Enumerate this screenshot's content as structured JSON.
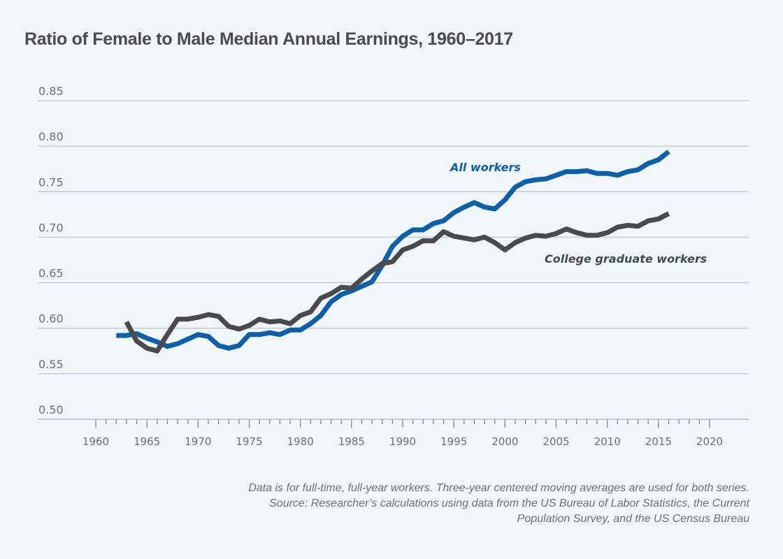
{
  "chart_data": {
    "type": "line",
    "title": "Ratio of Female to Male Median Annual Earnings, 1960–2017",
    "xlabel": "",
    "ylabel": "",
    "xlim": [
      1960,
      2020
    ],
    "ylim": [
      0.5,
      0.85
    ],
    "xticks": [
      1960,
      1965,
      1970,
      1975,
      1980,
      1985,
      1990,
      1995,
      2000,
      2005,
      2010,
      2015,
      2020
    ],
    "yticks": [
      "0.50",
      "0.55",
      "0.60",
      "0.65",
      "0.70",
      "0.75",
      "0.80",
      "0.85"
    ],
    "grid": "horizontal",
    "legend": "inline-labels",
    "series": [
      {
        "name": "All workers",
        "color": "#0f5fa6",
        "x": [
          1962,
          1963,
          1964,
          1965,
          1966,
          1967,
          1968,
          1969,
          1970,
          1971,
          1972,
          1973,
          1974,
          1975,
          1976,
          1977,
          1978,
          1979,
          1980,
          1981,
          1982,
          1983,
          1984,
          1985,
          1986,
          1987,
          1988,
          1989,
          1990,
          1991,
          1992,
          1993,
          1994,
          1995,
          1996,
          1997,
          1998,
          1999,
          2000,
          2001,
          2002,
          2003,
          2004,
          2005,
          2006,
          2007,
          2008,
          2009,
          2010,
          2011,
          2012,
          2013,
          2014,
          2015,
          2016
        ],
        "values": [
          0.592,
          0.592,
          0.594,
          0.589,
          0.585,
          0.58,
          0.583,
          0.588,
          0.593,
          0.591,
          0.581,
          0.578,
          0.581,
          0.593,
          0.593,
          0.595,
          0.593,
          0.598,
          0.598,
          0.605,
          0.614,
          0.629,
          0.637,
          0.641,
          0.646,
          0.651,
          0.669,
          0.69,
          0.701,
          0.708,
          0.708,
          0.715,
          0.718,
          0.727,
          0.733,
          0.738,
          0.733,
          0.731,
          0.741,
          0.755,
          0.761,
          0.763,
          0.764,
          0.768,
          0.772,
          0.772,
          0.773,
          0.77,
          0.77,
          0.768,
          0.772,
          0.774,
          0.781,
          0.785,
          0.794
        ]
      },
      {
        "name": "College graduate workers",
        "color": "#4a4a4d",
        "x": [
          1963,
          1964,
          1965,
          1966,
          1967,
          1968,
          1969,
          1970,
          1971,
          1972,
          1973,
          1974,
          1975,
          1976,
          1977,
          1978,
          1979,
          1980,
          1981,
          1982,
          1983,
          1984,
          1985,
          1986,
          1987,
          1988,
          1989,
          1990,
          1991,
          1992,
          1993,
          1994,
          1995,
          1996,
          1997,
          1998,
          1999,
          2000,
          2001,
          2002,
          2003,
          2004,
          2005,
          2006,
          2007,
          2008,
          2009,
          2010,
          2011,
          2012,
          2013,
          2014,
          2015,
          2016
        ],
        "values": [
          0.607,
          0.586,
          0.578,
          0.575,
          0.593,
          0.61,
          0.61,
          0.612,
          0.615,
          0.613,
          0.602,
          0.599,
          0.603,
          0.61,
          0.607,
          0.608,
          0.605,
          0.614,
          0.618,
          0.633,
          0.638,
          0.645,
          0.644,
          0.654,
          0.663,
          0.671,
          0.673,
          0.686,
          0.69,
          0.696,
          0.696,
          0.706,
          0.701,
          0.699,
          0.697,
          0.7,
          0.694,
          0.686,
          0.694,
          0.699,
          0.702,
          0.701,
          0.704,
          0.709,
          0.705,
          0.702,
          0.702,
          0.705,
          0.711,
          0.713,
          0.712,
          0.718,
          0.72,
          0.726
        ]
      }
    ],
    "annotations": [
      {
        "text": "All workers",
        "series": "All workers",
        "near_x": 1997,
        "near_y": 0.774
      },
      {
        "text": "College graduate workers",
        "series": "College graduate workers",
        "near_x": 2012,
        "near_y": 0.676
      }
    ],
    "notes": [
      "Data is for full-time, full-year workers. Three-year centered moving averages are used for both series.",
      "Source: Researcher’s calculations using data from the US Bureau of Labor Statistics, the Current",
      "Population Survey, and the US Census Bureau"
    ]
  }
}
